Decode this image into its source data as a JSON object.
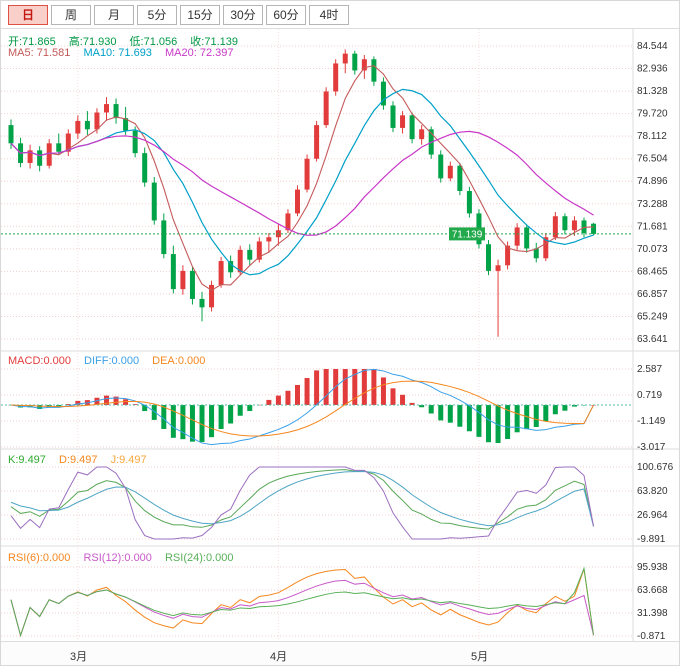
{
  "toolbar": {
    "tabs": [
      {
        "label": "日",
        "active": true
      },
      {
        "label": "周",
        "active": false
      },
      {
        "label": "月",
        "active": false
      },
      {
        "label": "5分",
        "active": false
      },
      {
        "label": "15分",
        "active": false
      },
      {
        "label": "30分",
        "active": false
      },
      {
        "label": "60分",
        "active": false
      },
      {
        "label": "4时",
        "active": false
      }
    ]
  },
  "colors": {
    "up": "#e23b3b",
    "down": "#00a348",
    "ma5": "#c45a5a",
    "ma10": "#00a0c8",
    "ma20": "#c838c8",
    "diff": "#3aa0e8",
    "dea": "#f5871f",
    "k_line": "#58a858",
    "d_line": "#4fa6c4",
    "j_line": "#9b6fc0",
    "rsi6": "#f5871f",
    "rsi12": "#c85ac8",
    "rsi24": "#58b058",
    "grid": "#f3cfcf",
    "axis_text": "#333333",
    "price_line": "#22a94c",
    "macd_zero_line": "#55bbaa",
    "divider": "#dddddd"
  },
  "main_panel": {
    "ohlc": {
      "open_label": "开:71.865",
      "high_label": "高:71.930",
      "low_label": "低:71.056",
      "close_label": "收:71.139"
    },
    "ma_labels": {
      "ma5": "MA5: 71.581",
      "ma10": "MA10: 71.693",
      "ma20": "MA20: 72.397"
    },
    "y_axis": [
      "84.544",
      "82.936",
      "81.328",
      "79.720",
      "78.112",
      "76.504",
      "74.896",
      "73.288",
      "71.681",
      "70.073",
      "68.465",
      "66.857",
      "65.249",
      "63.641"
    ],
    "price_tag": "71.139"
  },
  "macd_panel": {
    "labels": {
      "macd": "MACD:0.000",
      "diff": "DIFF:0.000",
      "dea": "DEA:0.000"
    },
    "y_axis": [
      "2.587",
      "0.719",
      "-1.149",
      "-3.017"
    ]
  },
  "kdj_panel": {
    "labels": {
      "k": "K:9.497",
      "d": "D:9.497",
      "j": "J:9.497"
    },
    "y_axis": [
      "100.676",
      "63.820",
      "26.964",
      "-9.891"
    ]
  },
  "rsi_panel": {
    "labels": {
      "rsi6": "RSI(6):0.000",
      "rsi12": "RSI(12):0.000",
      "rsi24": "RSI(24):0.000"
    },
    "y_axis": [
      "95.938",
      "63.668",
      "31.398",
      "-0.871"
    ]
  },
  "chart_data": {
    "type": "candlestick_with_indicators",
    "timeframe": "日",
    "price_axis_range": [
      63.641,
      84.544
    ],
    "macd_axis_range": [
      -3.017,
      2.587
    ],
    "kdj_axis_range": [
      -9.891,
      100.676
    ],
    "rsi_axis_range": [
      -0.871,
      95.938
    ],
    "current_price": 71.139,
    "last_ohlc": {
      "open": 71.865,
      "high": 71.93,
      "low": 71.056,
      "close": 71.139
    },
    "ma_values": {
      "MA5": 71.581,
      "MA10": 71.693,
      "MA20": 72.397
    },
    "end_values": {
      "macd": 0.0,
      "diff": 0.0,
      "dea": 0.0,
      "k": 9.497,
      "d": 9.497,
      "j": 9.497,
      "rsi6": 0.0,
      "rsi12": 0.0,
      "rsi24": 0.0
    },
    "x_months": [
      {
        "label": "3月",
        "start_index": 7
      },
      {
        "label": "4月",
        "start_index": 28
      },
      {
        "label": "5月",
        "start_index": 49
      }
    ],
    "candles_ohlc": [
      [
        78.9,
        79.3,
        77.2,
        77.6
      ],
      [
        77.6,
        78.0,
        75.9,
        76.2
      ],
      [
        76.2,
        77.5,
        75.8,
        77.1
      ],
      [
        77.1,
        77.4,
        75.6,
        76.0
      ],
      [
        76.0,
        77.9,
        75.8,
        77.6
      ],
      [
        77.6,
        78.3,
        76.8,
        77.0
      ],
      [
        77.0,
        78.6,
        76.7,
        78.3
      ],
      [
        78.3,
        79.6,
        77.9,
        79.2
      ],
      [
        79.2,
        79.9,
        78.2,
        78.6
      ],
      [
        78.6,
        80.1,
        78.3,
        79.8
      ],
      [
        79.8,
        80.9,
        79.2,
        80.4
      ],
      [
        80.4,
        80.8,
        79.0,
        79.4
      ],
      [
        79.4,
        80.2,
        78.2,
        78.5
      ],
      [
        78.5,
        78.8,
        76.6,
        76.9
      ],
      [
        76.9,
        77.3,
        74.5,
        74.8
      ],
      [
        74.8,
        75.2,
        71.8,
        72.1
      ],
      [
        72.1,
        72.6,
        69.4,
        69.7
      ],
      [
        69.7,
        70.3,
        66.9,
        67.2
      ],
      [
        67.2,
        68.9,
        66.8,
        68.5
      ],
      [
        68.5,
        68.8,
        66.1,
        66.5
      ],
      [
        66.5,
        67.0,
        64.9,
        65.9
      ],
      [
        65.9,
        67.8,
        65.6,
        67.5
      ],
      [
        67.5,
        69.5,
        67.3,
        69.2
      ],
      [
        69.2,
        69.6,
        68.0,
        68.4
      ],
      [
        68.4,
        70.3,
        68.2,
        70.0
      ],
      [
        70.0,
        70.4,
        68.9,
        69.3
      ],
      [
        69.3,
        70.9,
        69.1,
        70.6
      ],
      [
        70.6,
        71.2,
        69.8,
        70.9
      ],
      [
        70.9,
        71.8,
        70.3,
        71.4
      ],
      [
        71.4,
        72.9,
        71.2,
        72.6
      ],
      [
        72.6,
        74.6,
        72.4,
        74.3
      ],
      [
        74.3,
        76.8,
        74.1,
        76.5
      ],
      [
        76.5,
        79.2,
        76.3,
        78.9
      ],
      [
        78.9,
        81.6,
        78.7,
        81.3
      ],
      [
        81.3,
        83.6,
        81.0,
        83.3
      ],
      [
        83.3,
        84.3,
        82.6,
        84.0
      ],
      [
        84.0,
        84.2,
        82.5,
        82.8
      ],
      [
        82.8,
        83.9,
        82.2,
        83.6
      ],
      [
        83.6,
        83.8,
        81.7,
        82.0
      ],
      [
        82.0,
        82.3,
        80.0,
        80.3
      ],
      [
        80.3,
        80.6,
        78.4,
        78.7
      ],
      [
        78.7,
        79.9,
        78.3,
        79.6
      ],
      [
        79.6,
        79.8,
        77.6,
        77.9
      ],
      [
        77.9,
        78.9,
        77.5,
        78.6
      ],
      [
        78.6,
        78.8,
        76.5,
        76.8
      ],
      [
        76.8,
        77.1,
        74.8,
        75.1
      ],
      [
        75.1,
        76.3,
        74.9,
        76.0
      ],
      [
        76.0,
        76.2,
        73.9,
        74.2
      ],
      [
        74.2,
        74.5,
        72.3,
        72.6
      ],
      [
        72.6,
        72.9,
        70.1,
        70.4
      ],
      [
        70.4,
        70.7,
        68.2,
        68.5
      ],
      [
        68.5,
        69.3,
        63.8,
        68.9
      ],
      [
        68.9,
        70.6,
        68.6,
        70.3
      ],
      [
        70.3,
        71.9,
        70.0,
        71.6
      ],
      [
        71.6,
        71.8,
        69.8,
        70.1
      ],
      [
        70.1,
        70.5,
        69.1,
        69.4
      ],
      [
        69.4,
        71.2,
        69.2,
        70.9
      ],
      [
        70.9,
        72.7,
        70.7,
        72.4
      ],
      [
        72.4,
        72.6,
        71.1,
        71.4
      ],
      [
        71.4,
        72.4,
        71.0,
        72.1
      ],
      [
        72.1,
        72.3,
        70.9,
        71.2
      ],
      [
        71.865,
        71.93,
        71.056,
        71.139
      ]
    ],
    "rsi_spike_tail": {
      "rsi6": [
        55,
        93,
        0.3
      ],
      "rsi12": [
        50,
        56,
        0.3
      ],
      "rsi24": [
        60,
        94,
        0.3
      ]
    }
  }
}
